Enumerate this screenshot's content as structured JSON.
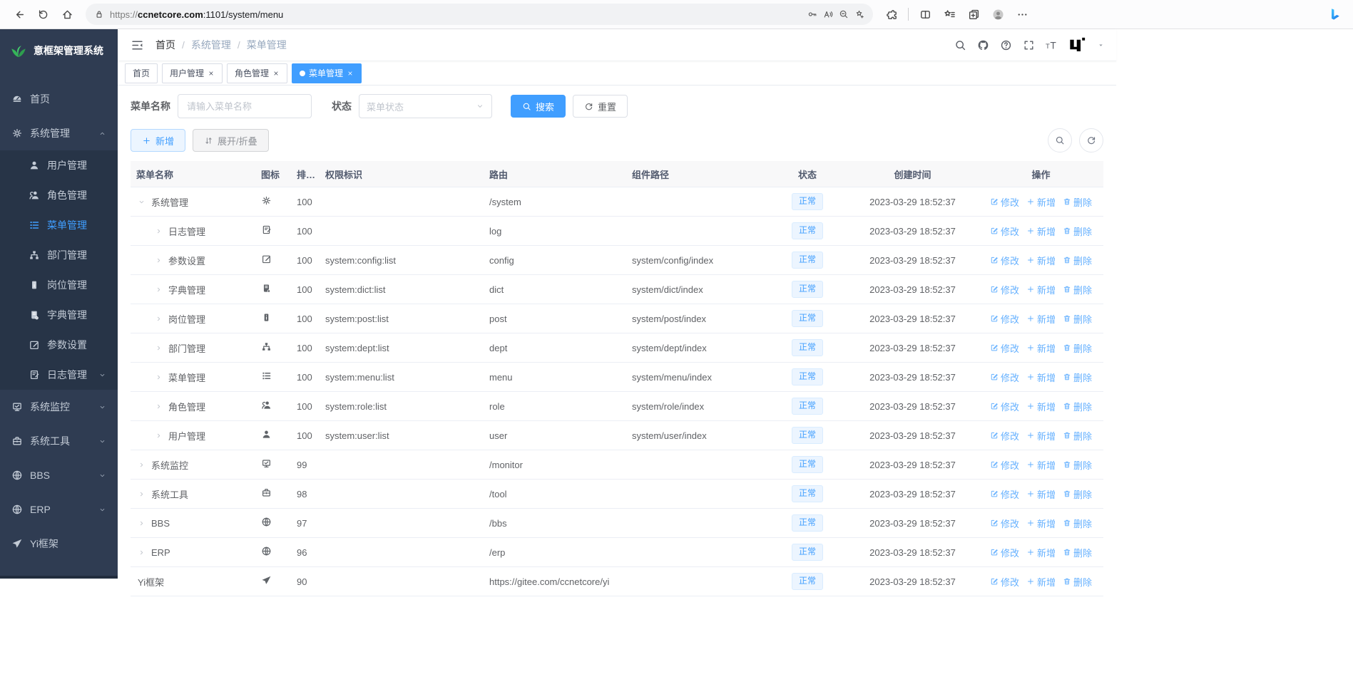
{
  "browser": {
    "url_scheme": "https://",
    "url_host": "ccnetcore.com",
    "url_path": ":1101/system/menu"
  },
  "sidebar": {
    "title": "意框架管理系统",
    "menu": [
      {
        "key": "home",
        "label": "首页",
        "icon": "dashboard"
      },
      {
        "key": "system",
        "label": "系统管理",
        "icon": "gear",
        "chevron": "up",
        "children": [
          {
            "key": "user",
            "label": "用户管理",
            "icon": "user"
          },
          {
            "key": "role",
            "label": "角色管理",
            "icon": "users"
          },
          {
            "key": "menu",
            "label": "菜单管理",
            "icon": "menu-list",
            "active": true
          },
          {
            "key": "dept",
            "label": "部门管理",
            "icon": "dept-tree"
          },
          {
            "key": "post",
            "label": "岗位管理",
            "icon": "post-badge"
          },
          {
            "key": "dict",
            "label": "字典管理",
            "icon": "dict-book"
          },
          {
            "key": "config",
            "label": "参数设置",
            "icon": "edit-square"
          },
          {
            "key": "log",
            "label": "日志管理",
            "icon": "doc-edit",
            "chevron": "down"
          }
        ]
      },
      {
        "key": "monitor",
        "label": "系统监控",
        "icon": "monitor",
        "chevron": "down"
      },
      {
        "key": "tool",
        "label": "系统工具",
        "icon": "toolbox",
        "chevron": "down"
      },
      {
        "key": "bbs",
        "label": "BBS",
        "icon": "globe",
        "chevron": "down"
      },
      {
        "key": "erp",
        "label": "ERP",
        "icon": "globe",
        "chevron": "down"
      },
      {
        "key": "yi",
        "label": "Yi框架",
        "icon": "send"
      }
    ]
  },
  "header": {
    "breadcrumb": [
      "首页",
      "系统管理",
      "菜单管理"
    ]
  },
  "tabs": [
    {
      "key": "home",
      "label": "首页",
      "closable": false,
      "active": false
    },
    {
      "key": "user",
      "label": "用户管理",
      "closable": true,
      "active": false
    },
    {
      "key": "role",
      "label": "角色管理",
      "closable": true,
      "active": false
    },
    {
      "key": "menu",
      "label": "菜单管理",
      "closable": true,
      "active": true
    }
  ],
  "filters": {
    "name_label": "菜单名称",
    "name_placeholder": "请输入菜单名称",
    "status_label": "状态",
    "status_placeholder": "菜单状态",
    "search_label": "搜索",
    "reset_label": "重置"
  },
  "toolbar": {
    "add_label": "新增",
    "expand_label": "展开/折叠"
  },
  "table": {
    "columns": [
      "菜单名称",
      "图标",
      "排序",
      "权限标识",
      "路由",
      "组件路径",
      "状态",
      "创建时间",
      "操作"
    ],
    "actions": [
      {
        "key": "edit",
        "label": "修改",
        "icon": "edit-pen"
      },
      {
        "key": "add",
        "label": "新增",
        "icon": "plus"
      },
      {
        "key": "delete",
        "label": "删除",
        "icon": "trash"
      }
    ],
    "rows": [
      {
        "name": "系统管理",
        "icon": "gear",
        "indent": 0,
        "arrow": "down",
        "sort": "100",
        "perm": "",
        "route": "/system",
        "component": "",
        "status": "正常",
        "created": "2023-03-29 18:52:37"
      },
      {
        "name": "日志管理",
        "icon": "doc-edit",
        "indent": 1,
        "arrow": "right",
        "sort": "100",
        "perm": "",
        "route": "log",
        "component": "",
        "status": "正常",
        "created": "2023-03-29 18:52:37"
      },
      {
        "name": "参数设置",
        "icon": "edit-square",
        "indent": 1,
        "arrow": "right",
        "sort": "100",
        "perm": "system:config:list",
        "route": "config",
        "component": "system/config/index",
        "status": "正常",
        "created": "2023-03-29 18:52:37"
      },
      {
        "name": "字典管理",
        "icon": "dict-book",
        "indent": 1,
        "arrow": "right",
        "sort": "100",
        "perm": "system:dict:list",
        "route": "dict",
        "component": "system/dict/index",
        "status": "正常",
        "created": "2023-03-29 18:52:37"
      },
      {
        "name": "岗位管理",
        "icon": "post-badge",
        "indent": 1,
        "arrow": "right",
        "sort": "100",
        "perm": "system:post:list",
        "route": "post",
        "component": "system/post/index",
        "status": "正常",
        "created": "2023-03-29 18:52:37"
      },
      {
        "name": "部门管理",
        "icon": "dept-tree",
        "indent": 1,
        "arrow": "right",
        "sort": "100",
        "perm": "system:dept:list",
        "route": "dept",
        "component": "system/dept/index",
        "status": "正常",
        "created": "2023-03-29 18:52:37"
      },
      {
        "name": "菜单管理",
        "icon": "menu-list",
        "indent": 1,
        "arrow": "right",
        "sort": "100",
        "perm": "system:menu:list",
        "route": "menu",
        "component": "system/menu/index",
        "status": "正常",
        "created": "2023-03-29 18:52:37"
      },
      {
        "name": "角色管理",
        "icon": "users",
        "indent": 1,
        "arrow": "right",
        "sort": "100",
        "perm": "system:role:list",
        "route": "role",
        "component": "system/role/index",
        "status": "正常",
        "created": "2023-03-29 18:52:37"
      },
      {
        "name": "用户管理",
        "icon": "user",
        "indent": 1,
        "arrow": "right",
        "sort": "100",
        "perm": "system:user:list",
        "route": "user",
        "component": "system/user/index",
        "status": "正常",
        "created": "2023-03-29 18:52:37"
      },
      {
        "name": "系统监控",
        "icon": "monitor",
        "indent": 0,
        "arrow": "right",
        "sort": "99",
        "perm": "",
        "route": "/monitor",
        "component": "",
        "status": "正常",
        "created": "2023-03-29 18:52:37"
      },
      {
        "name": "系统工具",
        "icon": "toolbox",
        "indent": 0,
        "arrow": "right",
        "sort": "98",
        "perm": "",
        "route": "/tool",
        "component": "",
        "status": "正常",
        "created": "2023-03-29 18:52:37"
      },
      {
        "name": "BBS",
        "icon": "globe",
        "indent": 0,
        "arrow": "right",
        "sort": "97",
        "perm": "",
        "route": "/bbs",
        "component": "",
        "status": "正常",
        "created": "2023-03-29 18:52:37"
      },
      {
        "name": "ERP",
        "icon": "globe",
        "indent": 0,
        "arrow": "right",
        "sort": "96",
        "perm": "",
        "route": "/erp",
        "component": "",
        "status": "正常",
        "created": "2023-03-29 18:52:37"
      },
      {
        "name": "Yi框架",
        "icon": "send",
        "indent": 0,
        "arrow": null,
        "sort": "90",
        "perm": "",
        "route": "https://gitee.com/ccnetcore/yi",
        "component": "",
        "status": "正常",
        "created": "2023-03-29 18:52:37"
      }
    ]
  },
  "colors": {
    "accent": "#409eff",
    "sidebar_bg": "#2f3c52",
    "submenu_bg": "#273447",
    "tag_bg": "#ecf5ff",
    "tag_border": "#d9ecff"
  }
}
